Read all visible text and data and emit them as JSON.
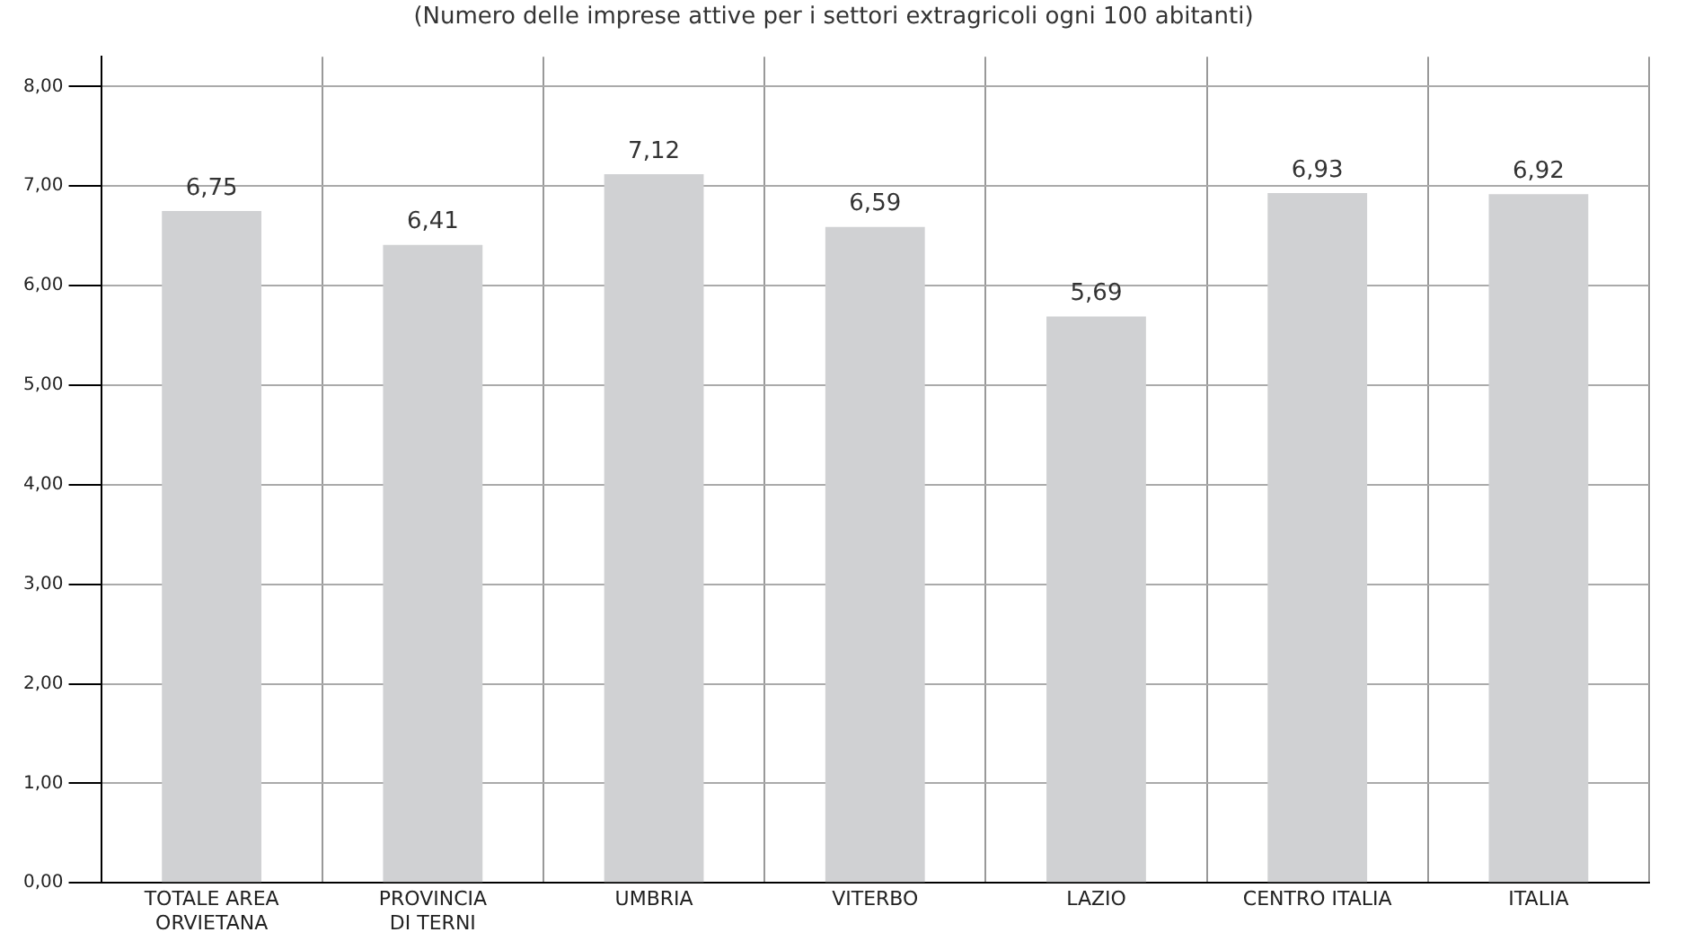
{
  "chart_data": {
    "type": "bar",
    "title": "(Numero delle imprese attive per i settori extragricoli ogni 100 abitanti)",
    "categories": [
      "TOTALE AREA\nORVIETANA",
      "PROVINCIA\nDI TERNI",
      "UMBRIA",
      "VITERBO",
      "LAZIO",
      "CENTRO ITALIA",
      "ITALIA"
    ],
    "values": [
      6.75,
      6.41,
      7.12,
      6.59,
      5.69,
      6.93,
      6.92
    ],
    "value_labels": [
      "6,75",
      "6,41",
      "7,12",
      "6,59",
      "5,69",
      "6,93",
      "6,92"
    ],
    "color": "#d0d1d3",
    "ylim": [
      0,
      8.3
    ],
    "yticks": [
      {
        "value": 0,
        "label": "0,00"
      },
      {
        "value": 1,
        "label": "1,00"
      },
      {
        "value": 2,
        "label": "2,00"
      },
      {
        "value": 3,
        "label": "3,00"
      },
      {
        "value": 4,
        "label": "4,00"
      },
      {
        "value": 5,
        "label": "5,00"
      },
      {
        "value": 6,
        "label": "6,00"
      },
      {
        "value": 7,
        "label": "7,00"
      },
      {
        "value": 8,
        "label": "8,00"
      }
    ],
    "grid": true,
    "legend": false
  }
}
